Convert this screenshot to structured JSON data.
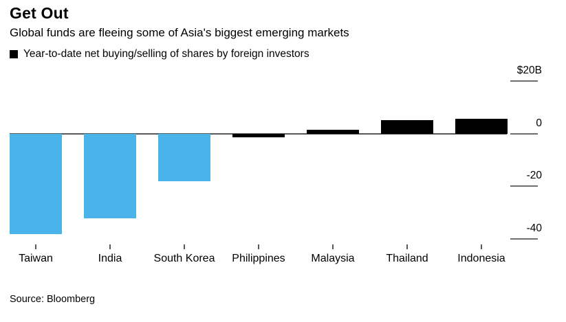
{
  "header": {
    "title": "Get Out",
    "subtitle": "Global funds are fleeing some of Asia's biggest emerging markets"
  },
  "legend": {
    "label": "Year-to-date net buying/selling of shares by foreign investors",
    "marker_color": "#000000"
  },
  "source": "Source: Bloomberg",
  "chart_data": {
    "type": "bar",
    "categories": [
      "Taiwan",
      "India",
      "South Korea",
      "Philippines",
      "Malaysia",
      "Thailand",
      "Indonesia"
    ],
    "values": [
      -38,
      -32,
      -18,
      -1.5,
      1.5,
      5,
      5.5
    ],
    "bar_colors": [
      "#4ab4ea",
      "#4ab4ea",
      "#4ab4ea",
      "#000000",
      "#000000",
      "#000000",
      "#000000"
    ],
    "title": "Get Out",
    "xlabel": "",
    "ylabel": "",
    "ylim": [
      -42,
      22
    ],
    "y_ticks": [
      {
        "value": 20,
        "label": "$20B"
      },
      {
        "value": 0,
        "label": "0"
      },
      {
        "value": -20,
        "label": "-20"
      },
      {
        "value": -40,
        "label": "-40"
      }
    ],
    "grid": false,
    "legend_position": "top-left",
    "accent_blue": "#4ab4ea",
    "accent_black": "#000000"
  }
}
